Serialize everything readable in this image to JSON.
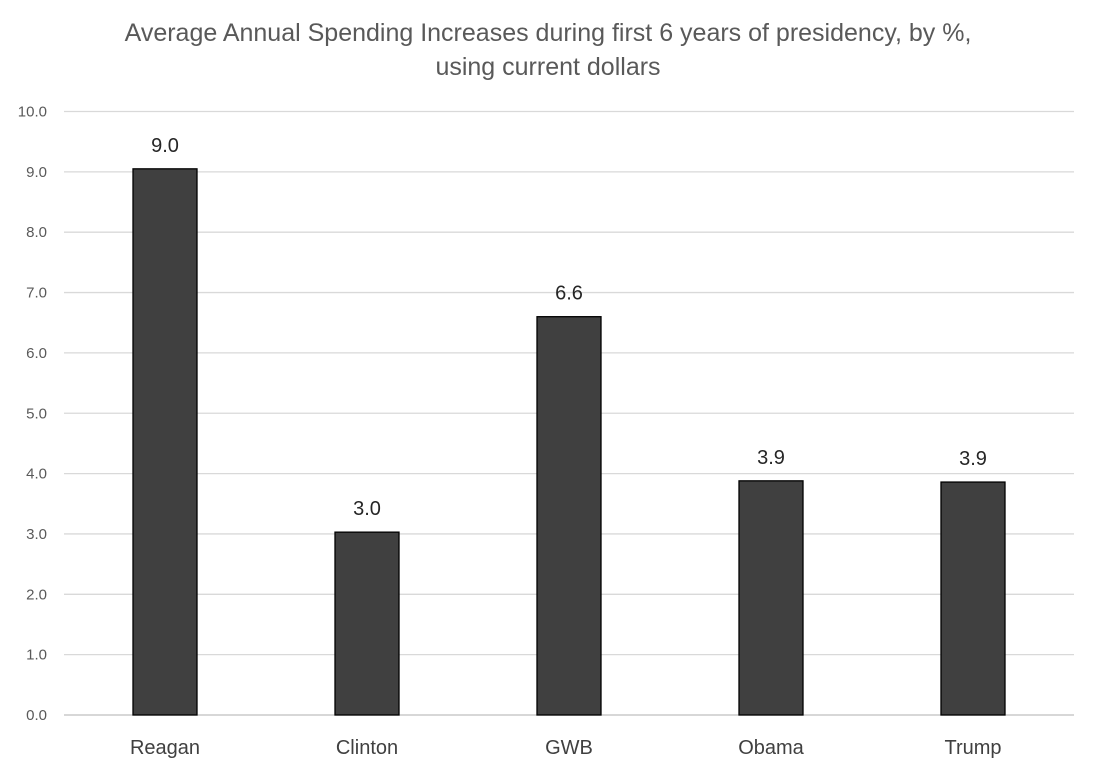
{
  "chart_data": {
    "type": "bar",
    "title": "Average Annual Spending Increases during first 6 years of presidency, by %, using current dollars",
    "categories": [
      "Reagan",
      "Clinton",
      "GWB",
      "Obama",
      "Trump"
    ],
    "values": [
      9.05,
      3.03,
      6.6,
      3.88,
      3.86
    ],
    "data_labels": [
      "9.0",
      "3.0",
      "6.6",
      "3.9",
      "3.9"
    ],
    "y_ticks": [
      "0.0",
      "1.0",
      "2.0",
      "3.0",
      "4.0",
      "5.0",
      "6.0",
      "7.0",
      "8.0",
      "9.0",
      "10.0"
    ],
    "ylim": [
      0,
      10
    ],
    "grid": true,
    "legend": "none",
    "colors": {
      "bar_fill": "#404040",
      "bar_stroke": "#000000",
      "grid": "#d9d9d9",
      "axis": "#bfbfbf"
    }
  }
}
